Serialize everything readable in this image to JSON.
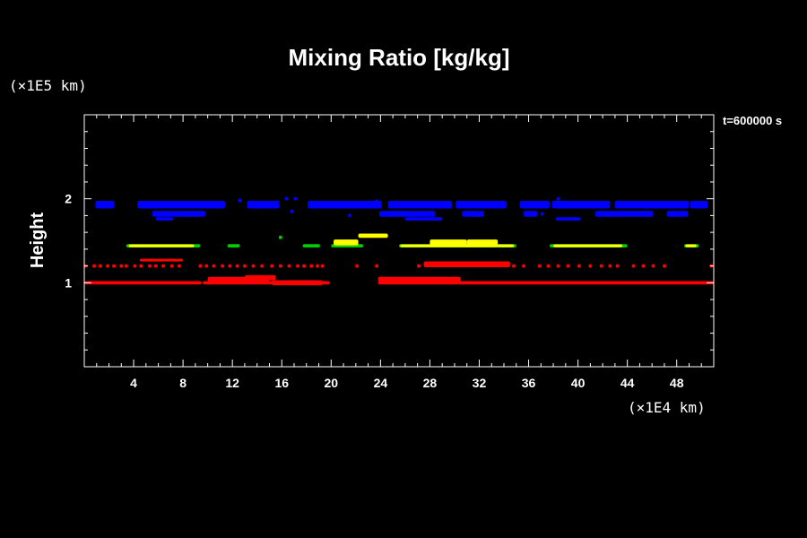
{
  "chart_data": {
    "type": "scatter",
    "title": "Mixing Ratio [kg/kg]",
    "ylabel": "Height",
    "x_unit": "(×1E4 km)",
    "y_unit": "(×1E5 km)",
    "time_label": "t=600000 s",
    "xlim": [
      0,
      51
    ],
    "ylim": [
      0,
      3
    ],
    "x_ticks": [
      4,
      8,
      12,
      16,
      20,
      24,
      28,
      32,
      36,
      40,
      44,
      48
    ],
    "x_tick_labels": [
      "4",
      "8",
      "12",
      "16",
      "20",
      "24",
      "28",
      "32",
      "36",
      "40",
      "44",
      "48"
    ],
    "y_ticks": [
      1,
      2
    ],
    "y_tick_labels": [
      "1",
      "2"
    ],
    "colors": {
      "background": "#000000",
      "axes": "#ffffff",
      "low": "#ff0000",
      "mid_edge": "#00cc00",
      "mid_core": "#ffff00",
      "high": "#0000ff"
    },
    "series": [
      {
        "color_key": "low",
        "bands": [
          {
            "y": 1.0,
            "thickness": 0.04,
            "segments": [
              [
                0,
                9.5
              ],
              [
                9.6,
                19.9
              ],
              [
                23.8,
                51
              ]
            ]
          },
          {
            "y": 1.04,
            "thickness": 0.06,
            "segments": [
              [
                10.0,
                15.0
              ],
              [
                23.8,
                30.5
              ]
            ]
          },
          {
            "y": 1.06,
            "thickness": 0.06,
            "segments": [
              [
                13.0,
                15.5
              ]
            ]
          },
          {
            "y": 1.0,
            "thickness": 0.06,
            "segments": [
              [
                15.2,
                19.3
              ]
            ]
          },
          {
            "y": 1.22,
            "thickness": 0.07,
            "segments": [
              [
                27.5,
                34.5
              ]
            ]
          },
          {
            "y": 1.27,
            "thickness": 0.03,
            "segments": [
              [
                4.5,
                8.0
              ]
            ]
          }
        ],
        "dots": [
          [
            0.1,
            1.2
          ],
          [
            0.8,
            1.2
          ],
          [
            1.3,
            1.2
          ],
          [
            1.9,
            1.2
          ],
          [
            2.4,
            1.2
          ],
          [
            3.0,
            1.2
          ],
          [
            3.4,
            1.2
          ],
          [
            4.1,
            1.2
          ],
          [
            4.6,
            1.2
          ],
          [
            5.3,
            1.2
          ],
          [
            5.8,
            1.2
          ],
          [
            6.4,
            1.2
          ],
          [
            7.1,
            1.2
          ],
          [
            7.7,
            1.2
          ],
          [
            9.4,
            1.2
          ],
          [
            9.9,
            1.2
          ],
          [
            10.5,
            1.2
          ],
          [
            11.2,
            1.2
          ],
          [
            11.8,
            1.2
          ],
          [
            12.4,
            1.2
          ],
          [
            13.0,
            1.2
          ],
          [
            13.7,
            1.2
          ],
          [
            14.4,
            1.2
          ],
          [
            15.2,
            1.2
          ],
          [
            15.9,
            1.2
          ],
          [
            16.6,
            1.2
          ],
          [
            17.3,
            1.2
          ],
          [
            17.8,
            1.2
          ],
          [
            18.4,
            1.2
          ],
          [
            18.9,
            1.2
          ],
          [
            19.3,
            1.2
          ],
          [
            22.1,
            1.2
          ],
          [
            23.7,
            1.2
          ],
          [
            27.1,
            1.2
          ],
          [
            34.8,
            1.2
          ],
          [
            35.6,
            1.2
          ],
          [
            36.9,
            1.2
          ],
          [
            37.6,
            1.2
          ],
          [
            38.4,
            1.2
          ],
          [
            39.2,
            1.2
          ],
          [
            40.1,
            1.2
          ],
          [
            41.0,
            1.2
          ],
          [
            41.9,
            1.2
          ],
          [
            42.6,
            1.2
          ],
          [
            43.2,
            1.2
          ],
          [
            44.5,
            1.2
          ],
          [
            45.3,
            1.2
          ],
          [
            46.1,
            1.2
          ],
          [
            47.0,
            1.2
          ],
          [
            50.8,
            1.2
          ]
        ]
      },
      {
        "color_key": "mid_edge",
        "bands": [
          {
            "y": 1.44,
            "thickness": 0.04,
            "segments": [
              [
                3.4,
                9.4
              ],
              [
                11.6,
                12.6
              ],
              [
                17.7,
                19.1
              ],
              [
                20.0,
                22.6
              ],
              [
                25.5,
                35.0
              ],
              [
                37.7,
                44.0
              ],
              [
                48.6,
                49.8
              ]
            ]
          }
        ],
        "dots": [
          [
            15.9,
            1.54
          ]
        ]
      },
      {
        "color_key": "mid_core",
        "bands": [
          {
            "y": 1.44,
            "thickness": 0.035,
            "segments": [
              [
                3.6,
                8.9
              ],
              [
                25.6,
                34.8
              ],
              [
                38.0,
                43.6
              ],
              [
                48.7,
                49.6
              ]
            ]
          },
          {
            "y": 1.48,
            "thickness": 0.07,
            "segments": [
              [
                20.2,
                22.2
              ],
              [
                28.0,
                31.0
              ],
              [
                31.0,
                33.5
              ]
            ]
          },
          {
            "y": 1.56,
            "thickness": 0.05,
            "segments": [
              [
                22.2,
                24.6
              ]
            ]
          }
        ],
        "dots": []
      },
      {
        "color_key": "high",
        "bands": [
          {
            "y": 1.93,
            "thickness": 0.09,
            "segments": [
              [
                0.9,
                2.4
              ],
              [
                4.3,
                11.4
              ],
              [
                13.2,
                15.8
              ],
              [
                18.1,
                24.1
              ],
              [
                24.6,
                29.8
              ],
              [
                30.1,
                34.2
              ],
              [
                35.3,
                37.7
              ],
              [
                37.9,
                42.6
              ],
              [
                43.0,
                49.0
              ],
              [
                49.1,
                50.5
              ]
            ]
          },
          {
            "y": 1.82,
            "thickness": 0.07,
            "segments": [
              [
                5.5,
                9.8
              ],
              [
                23.9,
                28.4
              ],
              [
                30.6,
                32.4
              ],
              [
                35.6,
                36.7
              ],
              [
                41.4,
                46.1
              ],
              [
                47.2,
                48.9
              ]
            ]
          },
          {
            "y": 1.76,
            "thickness": 0.04,
            "segments": [
              [
                5.8,
                7.2
              ],
              [
                26.0,
                29.0
              ],
              [
                38.2,
                40.2
              ]
            ]
          }
        ],
        "dots": [
          [
            12.6,
            1.98
          ],
          [
            16.4,
            2.0
          ],
          [
            17.1,
            2.0
          ],
          [
            16.8,
            1.85
          ],
          [
            23.7,
            1.97
          ],
          [
            21.5,
            1.8
          ],
          [
            37.1,
            1.82
          ],
          [
            38.4,
            2.0
          ]
        ]
      }
    ]
  }
}
